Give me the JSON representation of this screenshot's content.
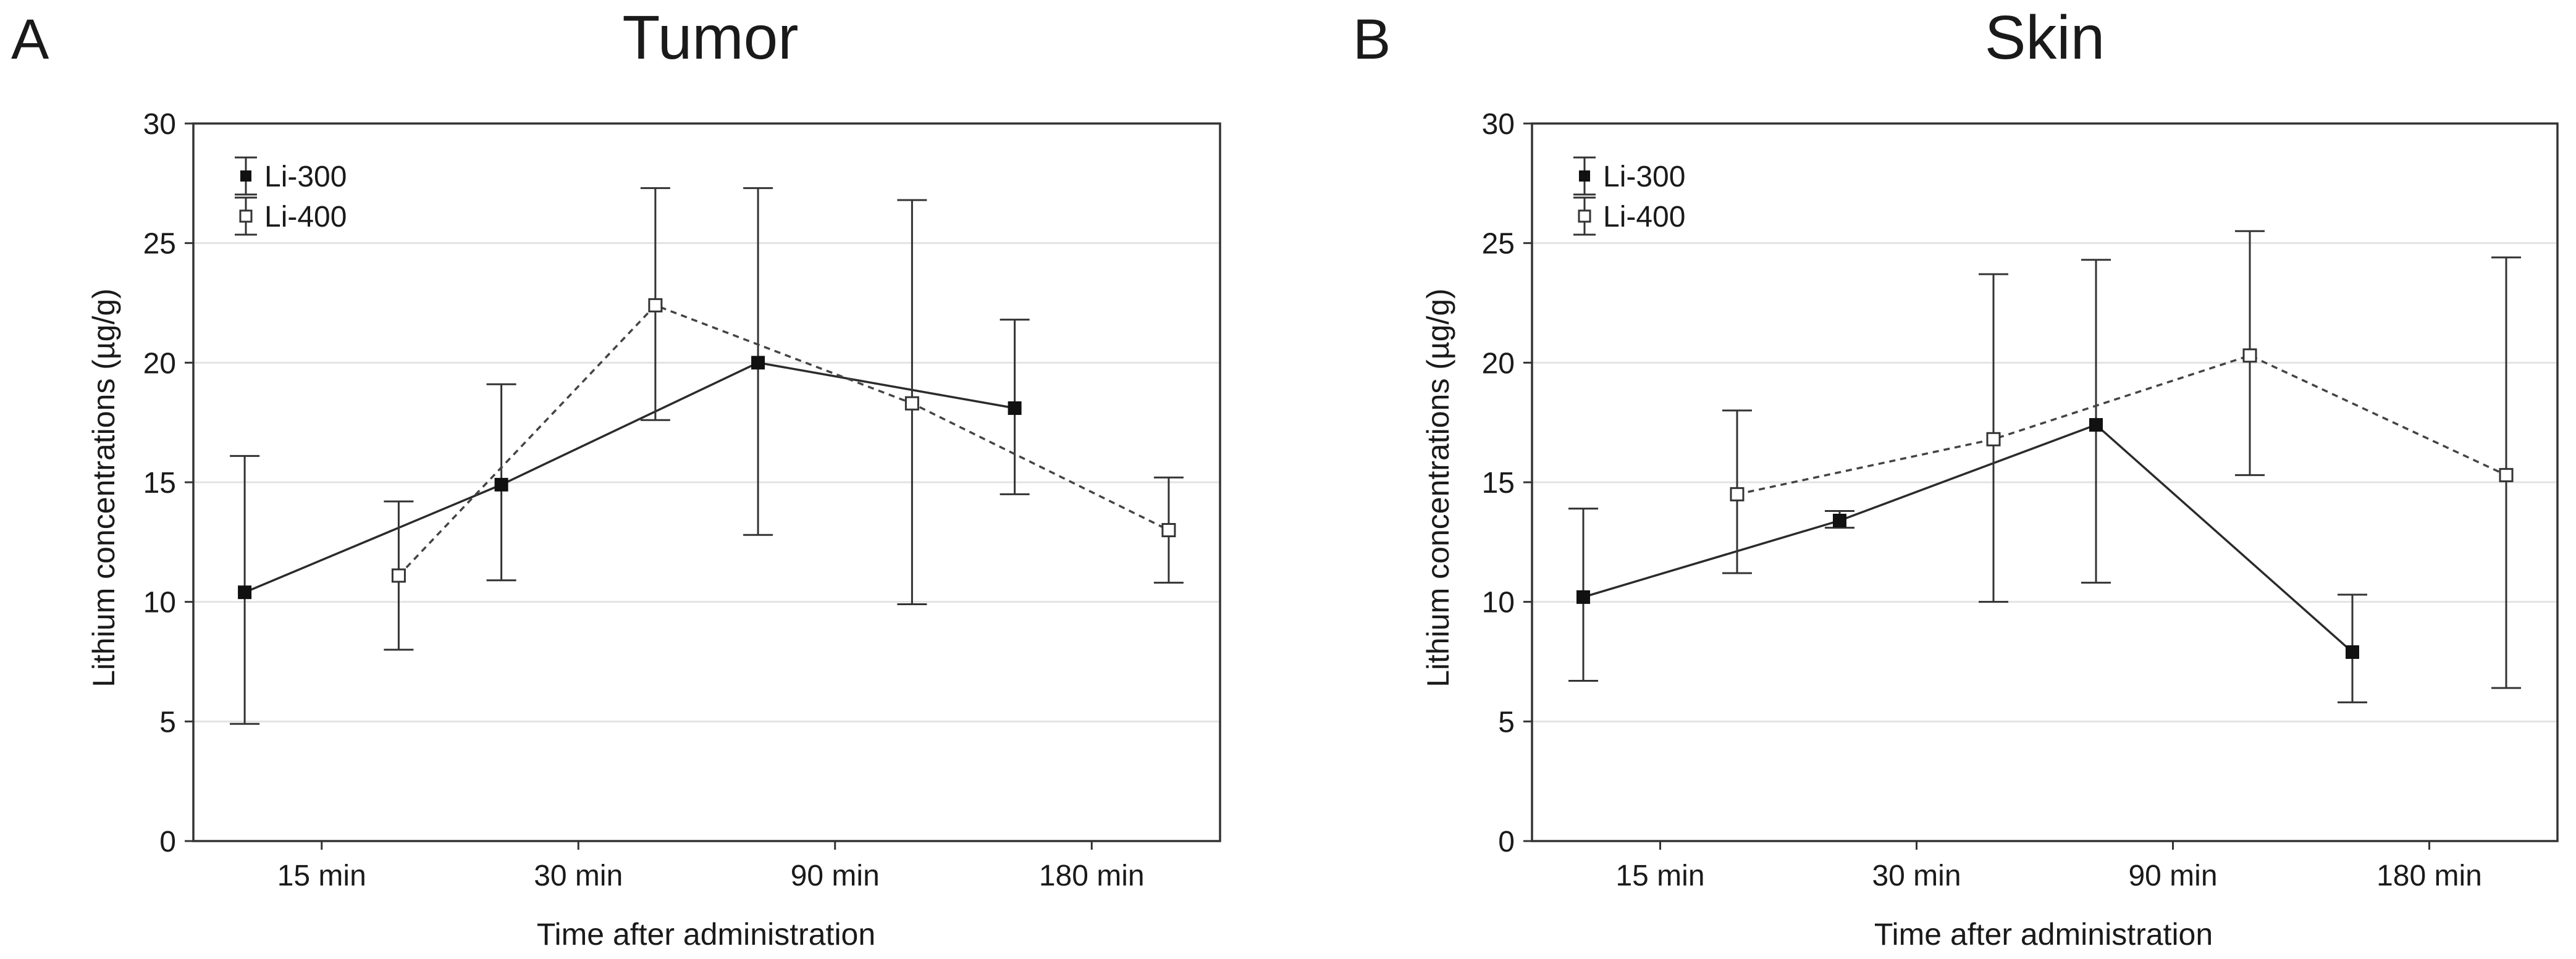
{
  "figure": {
    "colors": {
      "background": "#ffffff",
      "frame": "#333333",
      "grid": "#e3e3e3",
      "series": "#2b2b2b",
      "dashed": "#444444"
    }
  },
  "chart_data": [
    {
      "panel_label": "A",
      "type": "line",
      "title": "Tumor",
      "xlabel": "Time after administration",
      "ylabel": "Lithium concentrations (µg/g)",
      "categories": [
        "15 min",
        "30 min",
        "90 min",
        "180 min"
      ],
      "ylim": [
        0,
        30
      ],
      "yticks": [
        "0",
        "5",
        "10",
        "15",
        "20",
        "25",
        "30"
      ],
      "grid": "horizontal",
      "legend_position": "top-left",
      "series": [
        {
          "name": "Li-300",
          "marker": "filled-square",
          "line": "solid",
          "values": [
            10.4,
            14.9,
            20.0,
            18.1
          ],
          "error_low": [
            4.9,
            10.9,
            12.8,
            14.5
          ],
          "error_high": [
            16.1,
            19.1,
            27.3,
            21.8
          ]
        },
        {
          "name": "Li-400",
          "marker": "open-square",
          "line": "dashed",
          "values": [
            11.1,
            22.4,
            18.3,
            13.0
          ],
          "error_low": [
            8.0,
            17.6,
            9.9,
            10.8
          ],
          "error_high": [
            14.2,
            27.3,
            26.8,
            15.2
          ]
        }
      ]
    },
    {
      "panel_label": "B",
      "type": "line",
      "title": "Skin",
      "xlabel": "Time after administration",
      "ylabel": "Lithium concentrations (µg/g)",
      "categories": [
        "15 min",
        "30 min",
        "90 min",
        "180 min"
      ],
      "ylim": [
        0,
        30
      ],
      "yticks": [
        "0",
        "5",
        "10",
        "15",
        "20",
        "25",
        "30"
      ],
      "grid": "horizontal",
      "legend_position": "top-left",
      "series": [
        {
          "name": "Li-300",
          "marker": "filled-square",
          "line": "solid",
          "values": [
            10.2,
            13.4,
            17.4,
            7.9
          ],
          "error_low": [
            6.7,
            13.1,
            10.8,
            5.8
          ],
          "error_high": [
            13.9,
            13.8,
            24.3,
            10.3
          ]
        },
        {
          "name": "Li-400",
          "marker": "open-square",
          "line": "dashed",
          "values": [
            14.5,
            16.8,
            20.3,
            15.3
          ],
          "error_low": [
            11.2,
            10.0,
            15.3,
            6.4
          ],
          "error_high": [
            18.0,
            23.7,
            25.5,
            24.4
          ]
        }
      ]
    }
  ]
}
